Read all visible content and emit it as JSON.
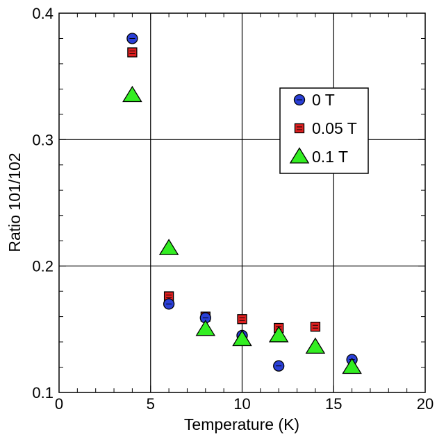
{
  "chart_data": {
    "type": "scatter",
    "xlabel": "Temperature (K)",
    "ylabel": "Ratio 101/102",
    "xlim": [
      0,
      20
    ],
    "ylim": [
      0.1,
      0.4
    ],
    "x_ticks": [
      0,
      5,
      10,
      15,
      20
    ],
    "y_ticks": [
      0.1,
      0.2,
      0.3,
      0.4
    ],
    "x_tick_labels": [
      "0",
      "5",
      "10",
      "15",
      "20"
    ],
    "y_tick_labels": [
      "0.1",
      "0.2",
      "0.3",
      "0.4"
    ],
    "grid": true,
    "legend_position": "upper-right",
    "series": [
      {
        "name": "0 T",
        "marker": "circle",
        "color": "#2a3fd6",
        "x": [
          4,
          6,
          8,
          10,
          12,
          16
        ],
        "y": [
          0.38,
          0.17,
          0.159,
          0.145,
          0.121,
          0.126
        ]
      },
      {
        "name": "0.05 T",
        "marker": "square",
        "color": "#e02020",
        "x": [
          4,
          6,
          8,
          10,
          12,
          14
        ],
        "y": [
          0.369,
          0.176,
          0.16,
          0.158,
          0.151,
          0.152
        ]
      },
      {
        "name": "0.1 T",
        "marker": "triangle",
        "color": "#33ee22",
        "x": [
          4,
          6,
          8,
          10,
          12,
          14,
          16
        ],
        "y": [
          0.335,
          0.214,
          0.15,
          0.142,
          0.145,
          0.136,
          0.12
        ]
      }
    ]
  }
}
